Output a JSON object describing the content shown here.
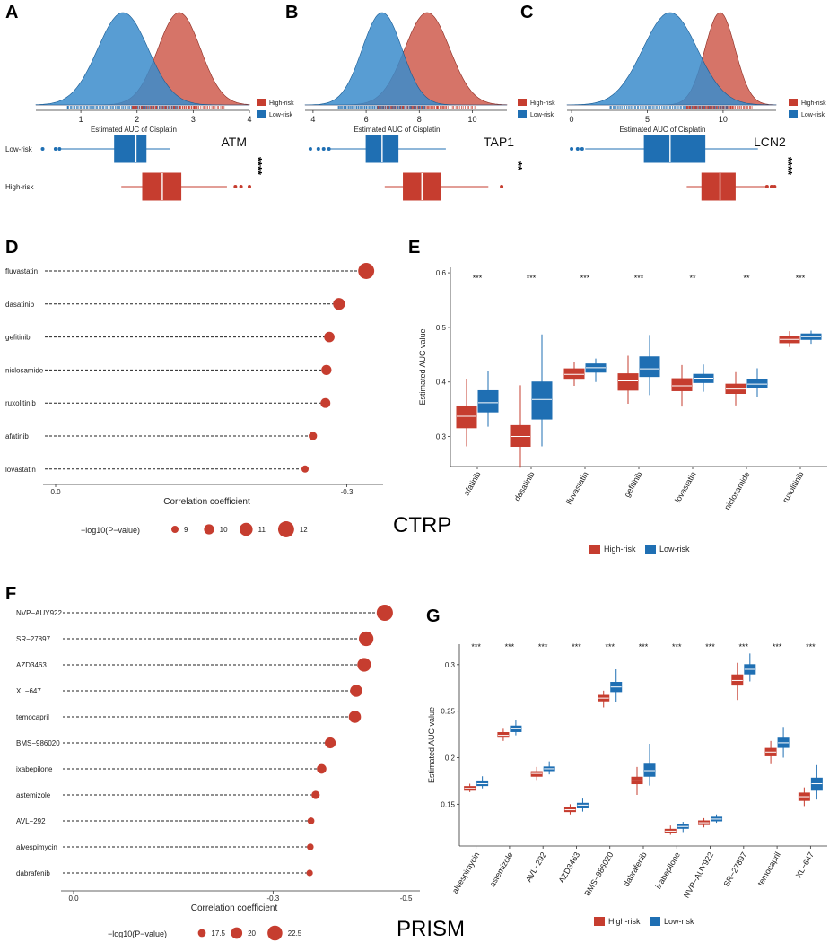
{
  "colors": {
    "high": "#c63d2f",
    "low": "#1f6fb3",
    "high_fill": "#cf5c4e",
    "low_fill": "#3b8ccb",
    "axis": "#333333"
  },
  "legend": {
    "high": "High-risk",
    "low": "Low-risk"
  },
  "panel_letters": [
    "A",
    "B",
    "C",
    "D",
    "E",
    "F",
    "G"
  ],
  "chart_data": [
    {
      "panel": "A",
      "type": "area",
      "gene": "ATM",
      "signif": "****",
      "xlabel": "Estimated AUC of Cisplatin",
      "xlim": [
        0.2,
        4
      ],
      "ticks": [
        1,
        2,
        3,
        4
      ],
      "high_density": {
        "mean": 2.75,
        "sd": 0.38
      },
      "low_density": {
        "mean": 1.75,
        "sd": 0.45
      },
      "box_labels": {
        "low": "Low-risk",
        "high": "High-risk"
      },
      "box_low": {
        "wmin": 0.6,
        "q1": 1.6,
        "med": 1.98,
        "q3": 2.16,
        "wmax": 2.58,
        "outliers": [
          0.32,
          0.55,
          0.62
        ]
      },
      "box_high": {
        "wmin": 1.72,
        "q1": 2.1,
        "med": 2.45,
        "q3": 2.78,
        "wmax": 3.6,
        "outliers": [
          3.75,
          3.85,
          4.0
        ]
      }
    },
    {
      "panel": "B",
      "type": "area",
      "gene": "TAP1",
      "signif": "**",
      "xlabel": "Estimated AUC of Cisplatin",
      "xlim": [
        3.7,
        11.3
      ],
      "ticks": [
        4,
        6,
        8,
        10
      ],
      "high_density": {
        "mean": 8.3,
        "sd": 0.85
      },
      "low_density": {
        "mean": 6.6,
        "sd": 0.75
      },
      "box_labels": {
        "low": "Low-risk",
        "high": "High-risk"
      },
      "box_low": {
        "wmin": 4.6,
        "q1": 6.0,
        "med": 6.6,
        "q3": 7.2,
        "wmax": 9.0,
        "outliers": [
          3.9,
          4.2,
          4.4,
          4.6
        ]
      },
      "box_high": {
        "wmin": 6.7,
        "q1": 7.4,
        "med": 8.1,
        "q3": 8.8,
        "wmax": 10.6,
        "outliers": [
          11.1
        ]
      }
    },
    {
      "panel": "C",
      "type": "area",
      "gene": "LCN2",
      "signif": "****",
      "xlabel": "Estimated AUC of Cisplatin",
      "xlim": [
        -0.3,
        13.5
      ],
      "ticks": [
        0,
        5,
        10
      ],
      "high_density": {
        "mean": 9.8,
        "sd": 1.0
      },
      "low_density": {
        "mean": 6.5,
        "sd": 1.8
      },
      "box_labels": {
        "low": "Low-risk",
        "high": "High-risk"
      },
      "box_low": {
        "wmin": 0.9,
        "q1": 4.8,
        "med": 6.5,
        "q3": 8.8,
        "wmax": 12.3,
        "outliers": [
          0.0,
          0.4,
          0.7
        ]
      },
      "box_high": {
        "wmin": 7.6,
        "q1": 8.6,
        "med": 9.8,
        "q3": 10.8,
        "wmax": 12.8,
        "outliers": [
          12.9,
          13.2,
          13.4
        ]
      }
    },
    {
      "panel": "D",
      "type": "scatter",
      "title": "CTRP",
      "xlabel": "Correlation coefficient",
      "xlim": [
        0,
        -0.33
      ],
      "ticks": [
        0.0,
        -0.3
      ],
      "size_legend_title": "−log10(P−value)",
      "size_legend_values": [
        9,
        10,
        11,
        12
      ],
      "labels": [
        "fluvastatin",
        "dasatinib",
        "gefitinib",
        "niclosamide",
        "ruxolitinib",
        "afatinib",
        "lovastatin"
      ],
      "coef": [
        -0.32,
        -0.292,
        -0.282,
        -0.279,
        -0.278,
        -0.265,
        -0.257
      ],
      "logp": [
        12.0,
        10.6,
        10.1,
        10.0,
        9.9,
        9.4,
        9.0
      ]
    },
    {
      "panel": "E",
      "type": "bar",
      "ylabel": "Estimated AUC value",
      "ylim": [
        0.245,
        0.61
      ],
      "ticks": [
        0.3,
        0.4,
        0.5,
        0.6
      ],
      "categories": [
        "afatinib",
        "dasatinib",
        "fluvastatin",
        "gefitinib",
        "lovastatin",
        "niclosamide",
        "ruxolitinib"
      ],
      "signif": [
        "***",
        "***",
        "***",
        "***",
        "**",
        "**",
        "***"
      ],
      "series": [
        {
          "name": "High-risk",
          "boxes": [
            [
              0.282,
              0.316,
              0.337,
              0.356,
              0.405
            ],
            [
              0.243,
              0.282,
              0.3,
              0.32,
              0.394
            ],
            [
              0.393,
              0.405,
              0.414,
              0.424,
              0.436
            ],
            [
              0.36,
              0.385,
              0.402,
              0.415,
              0.448
            ],
            [
              0.355,
              0.384,
              0.393,
              0.406,
              0.431
            ],
            [
              0.357,
              0.379,
              0.387,
              0.396,
              0.418
            ],
            [
              0.464,
              0.472,
              0.478,
              0.484,
              0.493
            ]
          ]
        },
        {
          "name": "Low-risk",
          "boxes": [
            [
              0.318,
              0.345,
              0.362,
              0.384,
              0.42
            ],
            [
              0.282,
              0.332,
              0.368,
              0.4,
              0.487
            ],
            [
              0.4,
              0.418,
              0.426,
              0.433,
              0.443
            ],
            [
              0.376,
              0.41,
              0.424,
              0.446,
              0.486
            ],
            [
              0.382,
              0.399,
              0.407,
              0.414,
              0.432
            ],
            [
              0.372,
              0.389,
              0.396,
              0.405,
              0.425
            ],
            [
              0.47,
              0.478,
              0.483,
              0.488,
              0.494
            ]
          ]
        }
      ]
    },
    {
      "panel": "F",
      "type": "scatter",
      "title": "PRISM",
      "xlabel": "Correlation coefficient",
      "xlim": [
        0,
        -0.51
      ],
      "ticks": [
        0.0,
        -0.3,
        -0.5
      ],
      "size_legend_title": "−log10(P−value)",
      "size_legend_values": [
        17.5,
        20.0,
        22.5
      ],
      "labels": [
        "NVP−AUY922",
        "SR−27897",
        "AZD3463",
        "XL−647",
        "temocapril",
        "BMS−986020",
        "ixabepilone",
        "astemizole",
        "AVL−292",
        "alvespimycin",
        "dabrafenib"
      ],
      "coef": [
        -0.468,
        -0.44,
        -0.437,
        -0.425,
        -0.423,
        -0.386,
        -0.373,
        -0.364,
        -0.357,
        -0.356,
        -0.355
      ],
      "logp": [
        23.5,
        22.3,
        21.7,
        20.6,
        20.6,
        19.7,
        18.7,
        17.8,
        16.8,
        16.7,
        16.5
      ]
    },
    {
      "panel": "G",
      "type": "bar",
      "ylabel": "Estimated AUC value",
      "ylim": [
        0.105,
        0.322
      ],
      "ticks": [
        0.15,
        0.2,
        0.25,
        0.3
      ],
      "categories": [
        "alvespimycin",
        "astemizole",
        "AVL−292",
        "AZD3463",
        "BMS−986020",
        "dabrafenib",
        "ixabepilone",
        "NVP−AUY922",
        "SR−27897",
        "temocapril",
        "XL−647"
      ],
      "signif": [
        "***",
        "***",
        "***",
        "***",
        "***",
        "***",
        "***",
        "***",
        "***",
        "***",
        "***"
      ],
      "series": [
        {
          "name": "High-risk",
          "boxes": [
            [
              0.163,
              0.165,
              0.167,
              0.169,
              0.172
            ],
            [
              0.218,
              0.222,
              0.224,
              0.227,
              0.231
            ],
            [
              0.176,
              0.18,
              0.183,
              0.185,
              0.19
            ],
            [
              0.139,
              0.142,
              0.144,
              0.146,
              0.15
            ],
            [
              0.254,
              0.261,
              0.264,
              0.267,
              0.272
            ],
            [
              0.16,
              0.172,
              0.175,
              0.179,
              0.19
            ],
            [
              0.117,
              0.119,
              0.121,
              0.123,
              0.127
            ],
            [
              0.125,
              0.128,
              0.13,
              0.132,
              0.135
            ],
            [
              0.262,
              0.278,
              0.283,
              0.289,
              0.302
            ],
            [
              0.193,
              0.202,
              0.206,
              0.21,
              0.218
            ],
            [
              0.148,
              0.154,
              0.158,
              0.162,
              0.168
            ]
          ]
        },
        {
          "name": "Low-risk",
          "boxes": [
            [
              0.167,
              0.17,
              0.172,
              0.175,
              0.18
            ],
            [
              0.224,
              0.228,
              0.231,
              0.234,
              0.24
            ],
            [
              0.182,
              0.186,
              0.188,
              0.19,
              0.196
            ],
            [
              0.142,
              0.146,
              0.149,
              0.151,
              0.156
            ],
            [
              0.26,
              0.271,
              0.276,
              0.281,
              0.295
            ],
            [
              0.17,
              0.18,
              0.186,
              0.193,
              0.215
            ],
            [
              0.12,
              0.124,
              0.126,
              0.128,
              0.131
            ],
            [
              0.13,
              0.132,
              0.134,
              0.136,
              0.139
            ],
            [
              0.282,
              0.29,
              0.295,
              0.3,
              0.312
            ],
            [
              0.2,
              0.211,
              0.216,
              0.221,
              0.233
            ],
            [
              0.155,
              0.165,
              0.172,
              0.178,
              0.192
            ]
          ]
        }
      ]
    }
  ]
}
